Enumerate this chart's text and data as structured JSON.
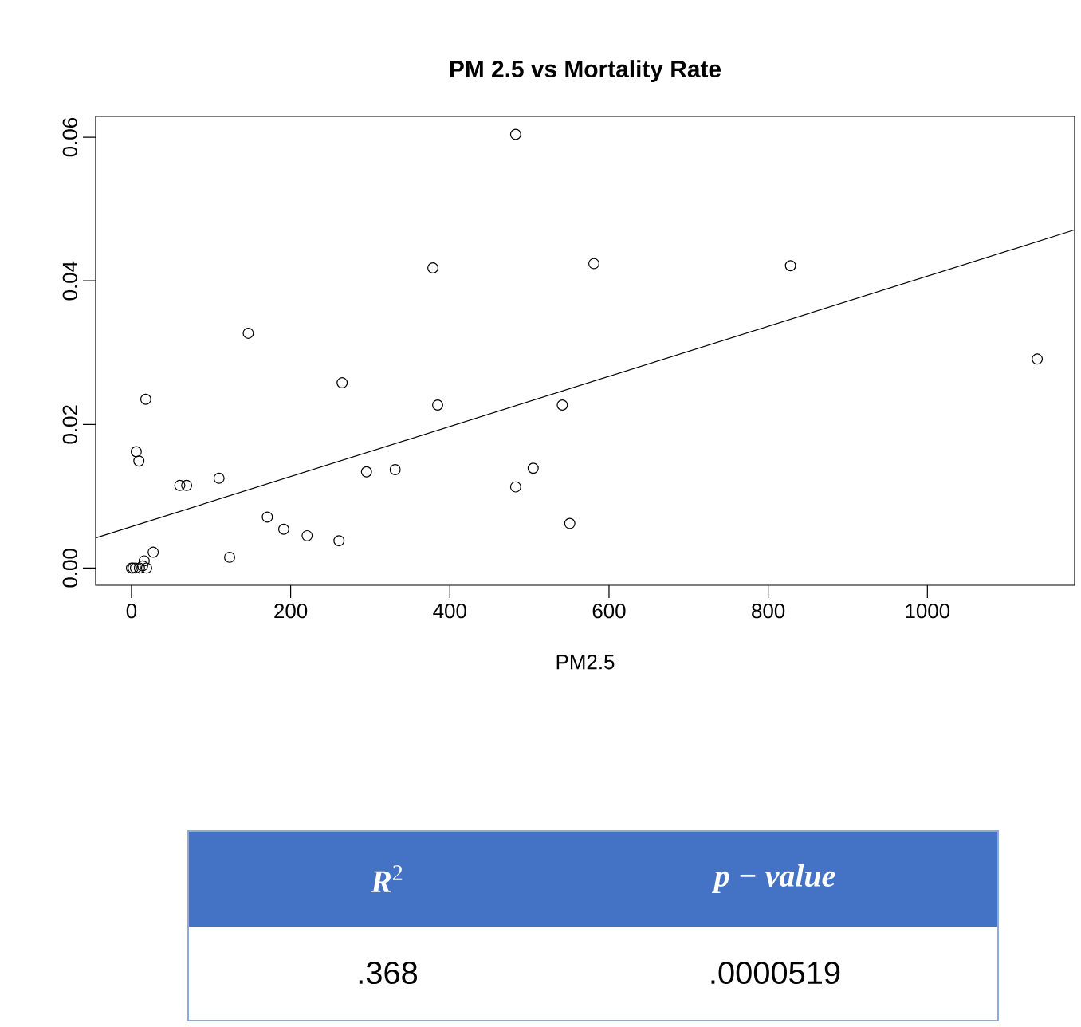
{
  "chart_data": {
    "type": "scatter",
    "title": "PM 2.5 vs Mortality Rate",
    "xlabel": "PM2.5",
    "xlim": [
      -45,
      1185
    ],
    "ylim": [
      -0.0024,
      0.0629
    ],
    "xticks": [
      0,
      200,
      400,
      600,
      800,
      1000
    ],
    "yticks": [
      {
        "value": 0,
        "label": "0.00"
      },
      {
        "value": 0.02,
        "label": "0.02"
      },
      {
        "value": 0.04,
        "label": "0.04"
      },
      {
        "value": 0.06,
        "label": "0.06"
      }
    ],
    "series": [
      {
        "color": "#000000",
        "marker": "circle",
        "x": [
          482.7,
          378.7,
          581,
          146.7,
          264.7,
          18,
          384.7,
          541.3,
          6,
          9.3,
          60.7,
          69.3,
          110,
          295.3,
          331.3,
          504.7,
          482.7,
          170.7,
          191.3,
          220.7,
          260.7,
          550.7,
          123.3,
          27.3,
          16,
          0,
          2,
          5,
          10,
          14,
          19,
          828,
          1138
        ],
        "values": [
          0.0604,
          0.0418,
          0.0424,
          0.0327,
          0.0258,
          0.0235,
          0.0227,
          0.0227,
          0.0162,
          0.0149,
          0.0115,
          0.0115,
          0.0125,
          0.0134,
          0.0137,
          0.0139,
          0.0113,
          0.0071,
          0.0054,
          0.0045,
          0.0038,
          0.0062,
          0.0015,
          0.0022,
          0.001,
          0,
          0,
          0,
          0,
          0.0003,
          0,
          0.0421,
          0.0291
        ]
      },
      {
        "type": "line",
        "color": "#000000",
        "marker": "none",
        "x": [
          -45,
          1185
        ],
        "values": [
          0.0042,
          0.0471
        ]
      }
    ],
    "annotations": [
      "*R*$^{2}$",
      "*p − value*",
      ".368",
      ".0000519"
    ]
  }
}
